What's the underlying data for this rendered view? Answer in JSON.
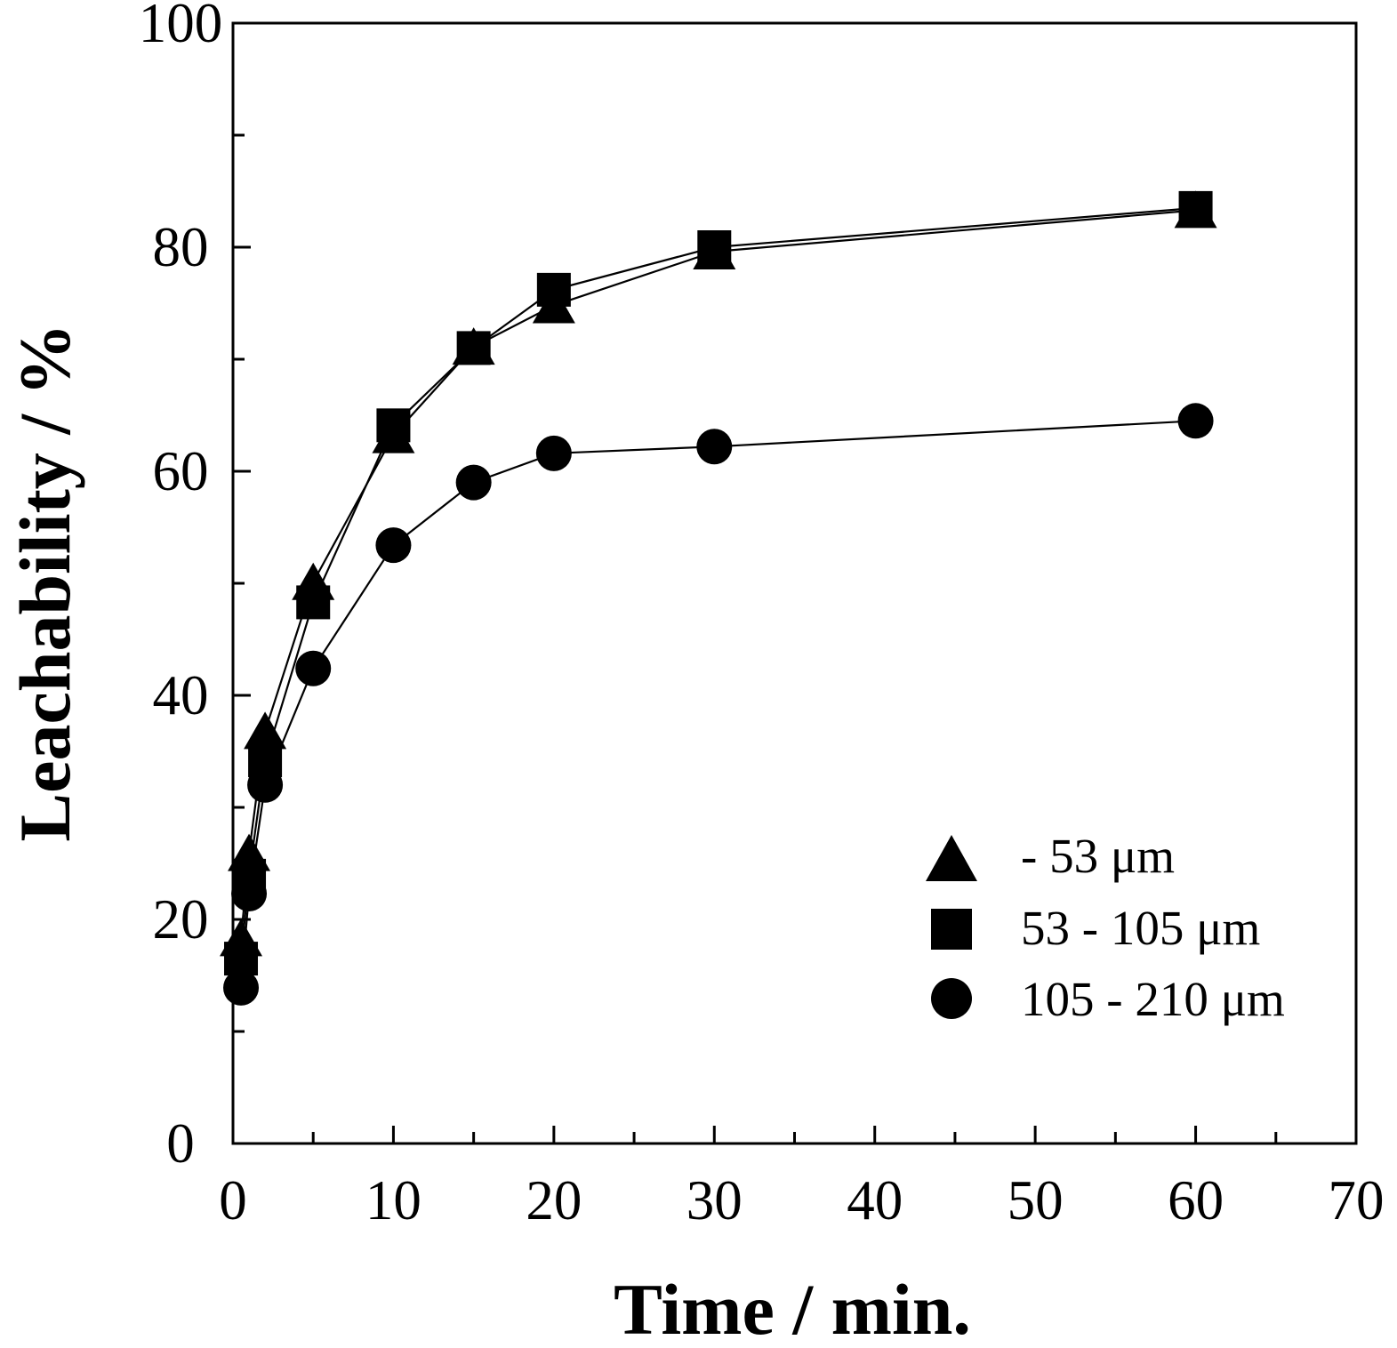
{
  "chart_data": {
    "type": "line",
    "title": "",
    "xlabel": "Time / min.",
    "ylabel": "Leachability / %",
    "xlim": [
      0,
      70
    ],
    "ylim": [
      0,
      100
    ],
    "x_ticks": [
      0,
      10,
      20,
      30,
      40,
      50,
      60,
      70
    ],
    "y_ticks": [
      0,
      20,
      40,
      60,
      80,
      100
    ],
    "grid": false,
    "legend_position": "lower-right",
    "series": [
      {
        "name": "- 53 μm",
        "marker": "triangle",
        "color": "#000000",
        "x": [
          0.5,
          1,
          2,
          5,
          10,
          15,
          20,
          30,
          60
        ],
        "y": [
          18.3,
          25.9,
          36.8,
          50.1,
          63.2,
          71.1,
          74.8,
          79.6,
          83.3
        ]
      },
      {
        "name": "53 - 105 μm",
        "marker": "square",
        "color": "#000000",
        "x": [
          0.5,
          1,
          2,
          5,
          10,
          15,
          20,
          30,
          60
        ],
        "y": [
          16.5,
          23.9,
          34.2,
          48.3,
          64.1,
          71.0,
          76.2,
          80.0,
          83.5
        ]
      },
      {
        "name": "105 - 210 μm",
        "marker": "circle",
        "color": "#000000",
        "x": [
          0.5,
          1,
          2,
          5,
          10,
          15,
          20,
          30,
          60
        ],
        "y": [
          13.9,
          22.3,
          32.0,
          42.4,
          53.4,
          59.0,
          61.6,
          62.2,
          64.5
        ]
      }
    ]
  }
}
